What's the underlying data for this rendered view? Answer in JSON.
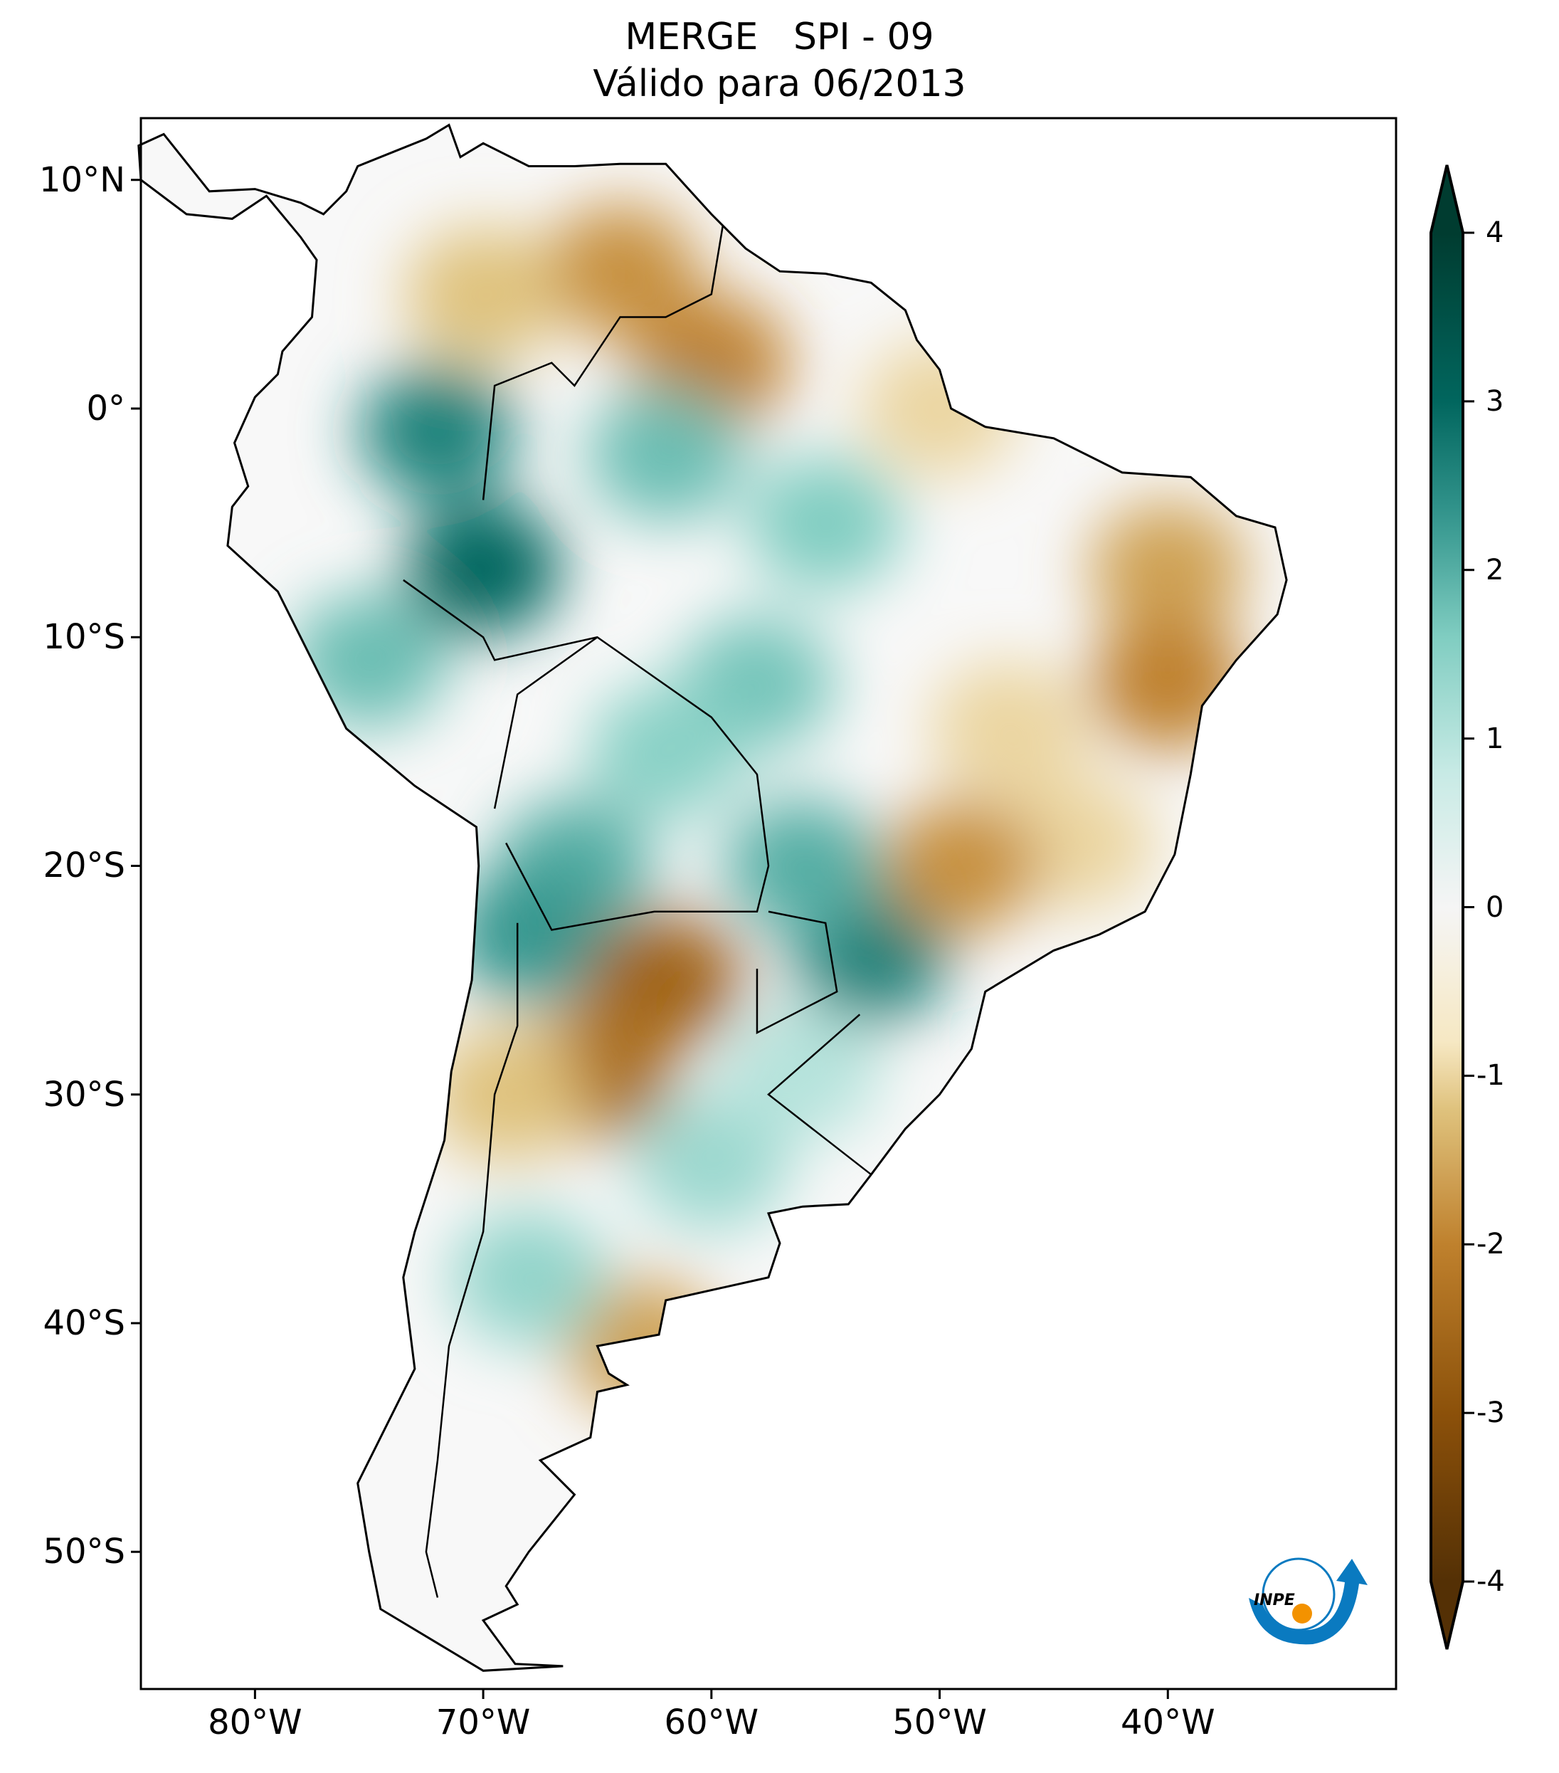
{
  "title": {
    "line1": "MERGE   SPI - 09",
    "line2": "Válido para 06/2013"
  },
  "map": {
    "extent": {
      "lon": [
        -85,
        -30
      ],
      "lat": [
        -56,
        12.7
      ]
    },
    "lon_ticks": [
      {
        "value": -80,
        "label": "80°W"
      },
      {
        "value": -70,
        "label": "70°W"
      },
      {
        "value": -60,
        "label": "60°W"
      },
      {
        "value": -50,
        "label": "50°W"
      },
      {
        "value": -40,
        "label": "40°W"
      }
    ],
    "lat_ticks": [
      {
        "value": 10,
        "label": "10°N"
      },
      {
        "value": 0,
        "label": "0°"
      },
      {
        "value": -10,
        "label": "10°S"
      },
      {
        "value": -20,
        "label": "20°S"
      },
      {
        "value": -30,
        "label": "30°S"
      },
      {
        "value": -40,
        "label": "40°S"
      },
      {
        "value": -50,
        "label": "50°S"
      }
    ],
    "spi_field": [
      {
        "lon": -64,
        "lat": 6,
        "value": -1.8
      },
      {
        "lon": -60,
        "lat": 2,
        "value": -2.0
      },
      {
        "lon": -70,
        "lat": 5,
        "value": -1.2
      },
      {
        "lon": -72,
        "lat": -1,
        "value": 2.6
      },
      {
        "lon": -70,
        "lat": -7,
        "value": 3.0
      },
      {
        "lon": -75,
        "lat": -11,
        "value": 1.8
      },
      {
        "lon": -62,
        "lat": -2,
        "value": 1.8
      },
      {
        "lon": -55,
        "lat": -5,
        "value": 1.6
      },
      {
        "lon": -58,
        "lat": -12,
        "value": 1.7
      },
      {
        "lon": -50,
        "lat": 0,
        "value": -1.0
      },
      {
        "lon": -40,
        "lat": -7,
        "value": -1.6
      },
      {
        "lon": -40,
        "lat": -12,
        "value": -2.0
      },
      {
        "lon": -62,
        "lat": -15,
        "value": 1.5
      },
      {
        "lon": -66,
        "lat": -20,
        "value": 2.0
      },
      {
        "lon": -68,
        "lat": -23,
        "value": 2.3
      },
      {
        "lon": -53,
        "lat": -24,
        "value": 2.6
      },
      {
        "lon": -56,
        "lat": -20,
        "value": 2.0
      },
      {
        "lon": -62,
        "lat": -25,
        "value": -2.6
      },
      {
        "lon": -65,
        "lat": -29,
        "value": -2.4
      },
      {
        "lon": -60,
        "lat": -33,
        "value": 1.3
      },
      {
        "lon": -56,
        "lat": -29,
        "value": 1.0
      },
      {
        "lon": -63,
        "lat": -41,
        "value": -1.6
      },
      {
        "lon": -68,
        "lat": -38,
        "value": 1.4
      },
      {
        "lon": -44,
        "lat": -19,
        "value": -1.0
      },
      {
        "lon": -49,
        "lat": -20,
        "value": -1.8
      },
      {
        "lon": -47,
        "lat": -14,
        "value": -1.0
      },
      {
        "lon": -69,
        "lat": -30,
        "value": -1.2
      }
    ]
  },
  "colorbar": {
    "colormap": "BrBG",
    "range": [
      -4,
      4
    ],
    "extend": "both",
    "ticks": [
      {
        "value": 4,
        "label": "4"
      },
      {
        "value": 3,
        "label": "3"
      },
      {
        "value": 2,
        "label": "2"
      },
      {
        "value": 1,
        "label": "1"
      },
      {
        "value": 0,
        "label": "0"
      },
      {
        "value": -1,
        "label": "-1"
      },
      {
        "value": -2,
        "label": "-2"
      },
      {
        "value": -3,
        "label": "-3"
      },
      {
        "value": -4,
        "label": "-4"
      }
    ],
    "colors": {
      "max": "#003c30",
      "mid": "#f5f5f5",
      "min": "#543005"
    }
  },
  "logo": {
    "text": "INPE",
    "arrow_color": "#0a7ac0",
    "dot_color": "#f39200"
  }
}
